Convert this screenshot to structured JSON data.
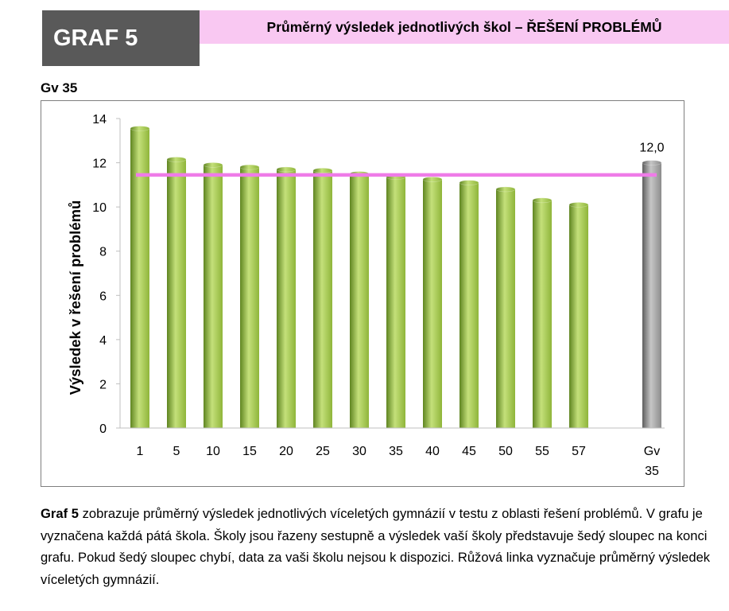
{
  "header": {
    "graph_label": "GRAF 5",
    "title": "Průměrný výsledek jednotlivých škol – ŘEŠENÍ PROBLÉMŮ"
  },
  "school_label": "Gv 35",
  "chart_data": {
    "type": "bar",
    "ylabel": "Výsledek v řešení problémů",
    "ylim": [
      0,
      14
    ],
    "yticks": [
      0,
      2,
      4,
      6,
      8,
      10,
      12,
      14
    ],
    "categories": [
      "1",
      "5",
      "10",
      "15",
      "20",
      "25",
      "30",
      "35",
      "40",
      "45",
      "50",
      "55",
      "57"
    ],
    "values": [
      13.55,
      12.15,
      11.9,
      11.8,
      11.7,
      11.65,
      11.5,
      11.35,
      11.25,
      11.1,
      10.8,
      10.3,
      10.1
    ],
    "school_bar": {
      "label_line1": "Gv",
      "label_line2": "35",
      "value": 12.0,
      "value_label": "12,0"
    },
    "average_line": {
      "value": 11.45
    },
    "grid": false,
    "colors": {
      "bar": "#8fb53a",
      "bar_light": "#c4e07a",
      "bar_dark": "#5f8521",
      "school_bar": "#8c8c8c",
      "school_bar_light": "#c6c6c6",
      "school_bar_dark": "#5e5e5e",
      "average_line": "#ef7be8"
    }
  },
  "caption": {
    "bold": "Graf 5",
    "text": " zobrazuje průměrný výsledek jednotlivých víceletých gymnázií v testu z oblasti řešení problémů. V grafu je vyznačena každá pátá škola. Školy jsou řazeny sestupně a výsledek vaší školy představuje šedý sloupec na konci grafu. Pokud šedý sloupec chybí, data za vaši školu nejsou k dispozici. Růžová linka vyznačuje průměrný výsledek víceletých gymnázií."
  }
}
